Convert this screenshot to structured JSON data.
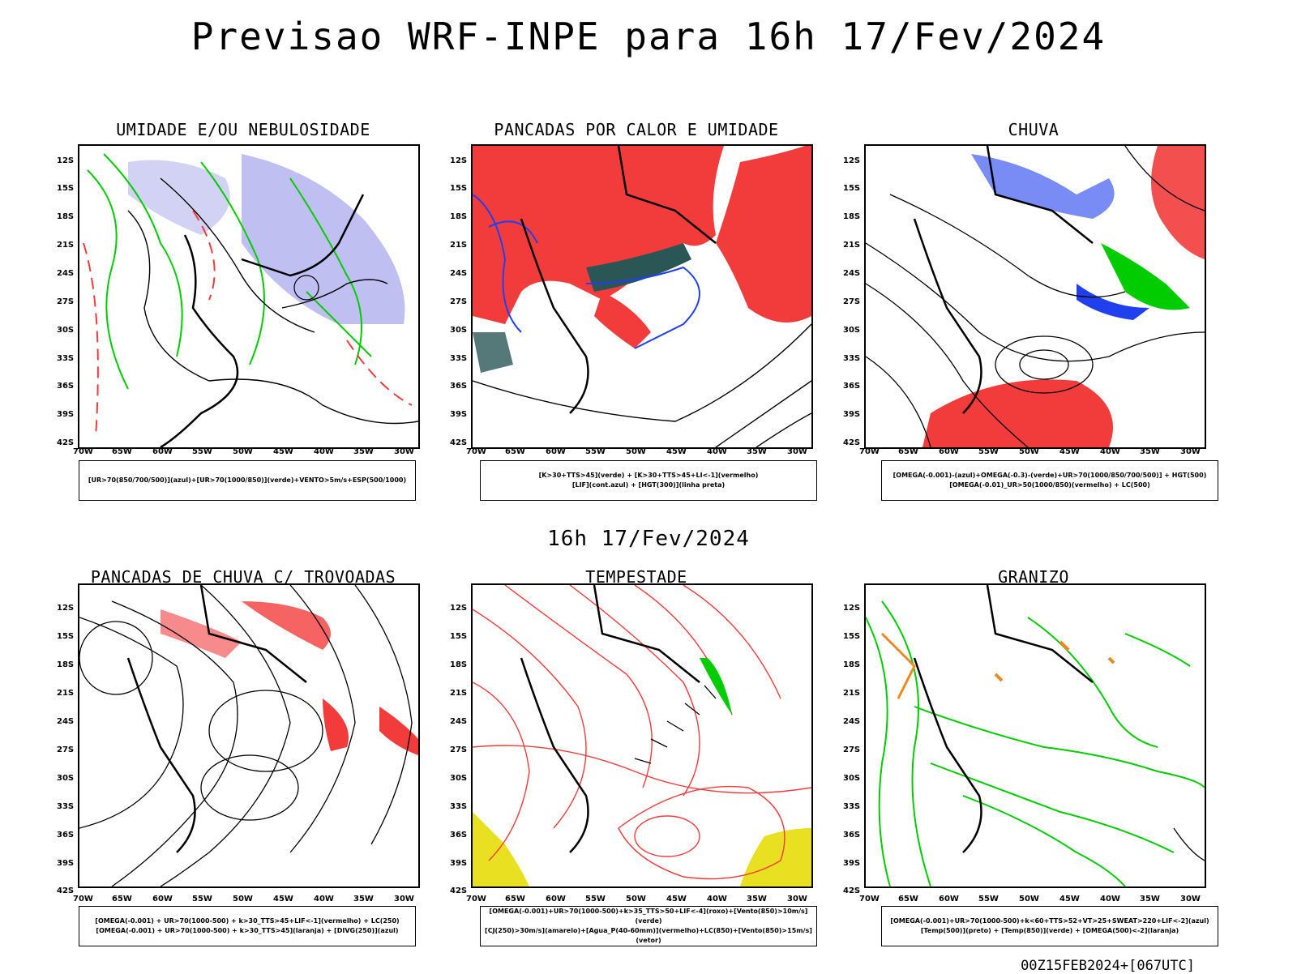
{
  "title": "Previsao WRF-INPE  para 16h 17/Fev/2024",
  "subtitle": "16h 17/Fev/2024",
  "footer": "00Z15FEB2024+[067UTC]",
  "axes": {
    "lat_labels": [
      "12S",
      "15S",
      "18S",
      "21S",
      "24S",
      "27S",
      "30S",
      "33S",
      "36S",
      "39S",
      "42S"
    ],
    "lon_labels": [
      "70W",
      "65W",
      "60W",
      "55W",
      "50W",
      "45W",
      "40W",
      "35W",
      "30W"
    ]
  },
  "panels": [
    {
      "title": "UMIDADE E/OU NEBULOSIDADE",
      "legend": [
        "[UR>70(850/700/500)](azul)+[UR>70(1000/850)](verde)+VENTO>5m/s+ESP(500/1000)"
      ]
    },
    {
      "title": "PANCADAS POR CALOR E UMIDADE",
      "legend": [
        "[K>30+TTS>45](verde) + [K>30+TTS>45+LI<-1](vermelho)",
        "[LIF](cont.azul) + [HGT(300)](linha preta)"
      ]
    },
    {
      "title": "CHUVA",
      "legend": [
        "[OMEGA(-0.001)-(azul)+OMEGA(-0.3)-(verde)+UR>70(1000/850/700/500)] + HGT(500)",
        "[OMEGA(-0.01)_UR>50(1000/850)(vermelho) + LC(500)"
      ]
    },
    {
      "title": "PANCADAS DE CHUVA C/ TROVOADAS",
      "legend": [
        "[OMEGA(-0.001) + UR>70(1000-500) + k>30_TTS>45+LIF<-1](vermelho) + LC(250)",
        "[OMEGA(-0.001) + UR>70(1000-500) + k>30_TTS>45](laranja) + [DIVG(250)](azul)"
      ]
    },
    {
      "title": "TEMPESTADE",
      "legend": [
        "[OMEGA(-0.001)+UR>70(1000-500)+k>35_TTS>50+LIF<-4](roxo)+[Vento(850)>10m/s](verde)",
        "[CJ(250)>30m/s](amarelo)+[Agua_P(40-60mm)](vermelho)+LC(850)+[Vento(850)>15m/s](vetor)"
      ]
    },
    {
      "title": "GRANIZO",
      "legend": [
        "[OMEGA(-0.001)+UR>70(1000-500)+k<60+TTS>52+VT>25+SWEAT>220+LIF<-2](azul)",
        "[Temp(500)](preto) + [Temp(850)](verde) + [OMEGA(500)<-2](laranja)"
      ]
    }
  ],
  "colors": {
    "red": "#f23c3c",
    "green": "#00cc00",
    "blue": "#2040f0",
    "lavender": "#b4b4ee",
    "darkteal": "#2a5656",
    "yellow": "#e8e020",
    "orange": "#ee8822",
    "purple": "#aa22cc"
  }
}
